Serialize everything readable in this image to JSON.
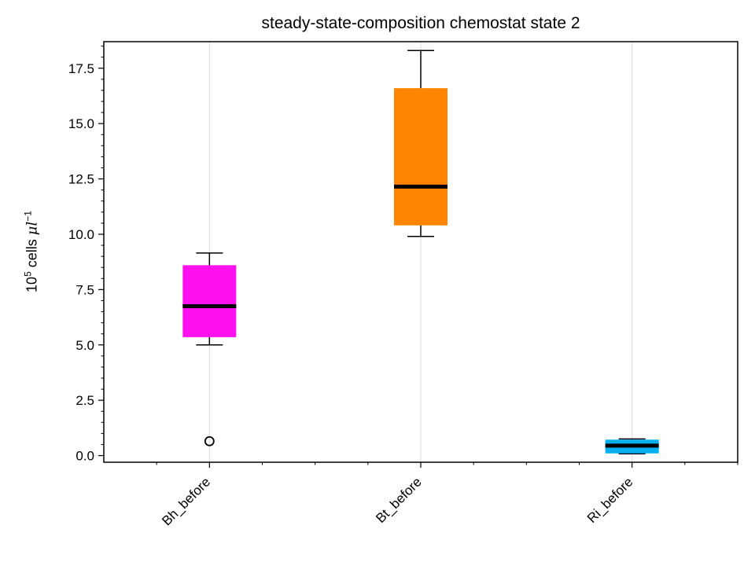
{
  "chart_data": {
    "type": "box",
    "title": "steady-state-composition chemostat state 2",
    "ylabel": {
      "base": "10",
      "exponent": "5",
      "unit_text": "cells",
      "unit_symbol": "μl",
      "unit_exponent": "−1"
    },
    "xlabel": "",
    "ylim": [
      -0.3,
      18.7
    ],
    "yticks": [
      0.0,
      2.5,
      5.0,
      7.5,
      10.0,
      12.5,
      15.0,
      17.5
    ],
    "ytick_labels": [
      "0.0",
      "2.5",
      "5.0",
      "7.5",
      "10.0",
      "12.5",
      "15.0",
      "17.5"
    ],
    "grid": "vertical",
    "categories": [
      "Bh_before",
      "Bt_before",
      "Ri_before"
    ],
    "boxes": [
      {
        "name": "Bh_before",
        "color": "#FF10EE",
        "whisker_low": 5.0,
        "q1": 5.35,
        "median": 6.75,
        "q3": 8.6,
        "whisker_high": 9.15,
        "outliers": [
          0.65
        ]
      },
      {
        "name": "Bt_before",
        "color": "#FF8500",
        "whisker_low": 9.9,
        "q1": 10.4,
        "median": 12.15,
        "q3": 16.6,
        "whisker_high": 18.3,
        "outliers": []
      },
      {
        "name": "Ri_before",
        "color": "#00B0F0",
        "whisker_low": 0.08,
        "q1": 0.1,
        "median": 0.45,
        "q3": 0.72,
        "whisker_high": 0.75,
        "outliers": []
      }
    ]
  }
}
